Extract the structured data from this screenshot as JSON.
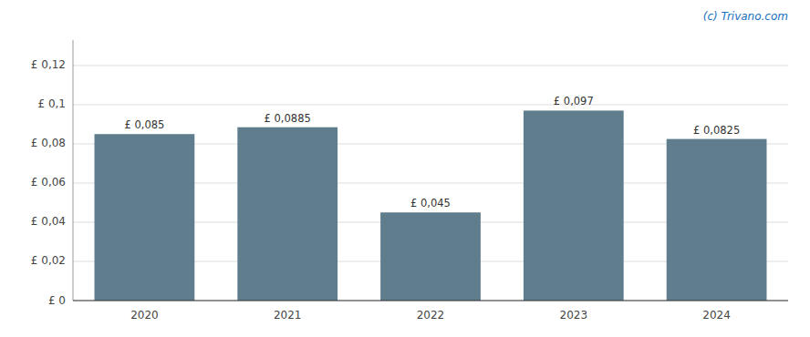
{
  "chart_data": {
    "type": "bar",
    "categories": [
      "2020",
      "2021",
      "2022",
      "2023",
      "2024"
    ],
    "values": [
      0.085,
      0.0885,
      0.045,
      0.097,
      0.0825
    ],
    "value_labels": [
      "£ 0,085",
      "£ 0,0885",
      "£ 0,045",
      "£ 0,097",
      "£ 0,0825"
    ],
    "data_labels": true,
    "color": "#5f7d8c",
    "ylim": [
      0,
      0.133
    ],
    "yticks": [
      {
        "value": 0,
        "label": "£ 0"
      },
      {
        "value": 0.02,
        "label": "£ 0,02"
      },
      {
        "value": 0.04,
        "label": "£ 0,04"
      },
      {
        "value": 0.06,
        "label": "£ 0,06"
      },
      {
        "value": 0.08,
        "label": "£ 0,08"
      },
      {
        "value": 0.1,
        "label": "£ 0,1"
      },
      {
        "value": 0.12,
        "label": "£ 0,12"
      }
    ],
    "grid": true,
    "annotations": [
      {
        "text": "(c) Trivano.com",
        "color": "#1a6fbe"
      }
    ]
  }
}
